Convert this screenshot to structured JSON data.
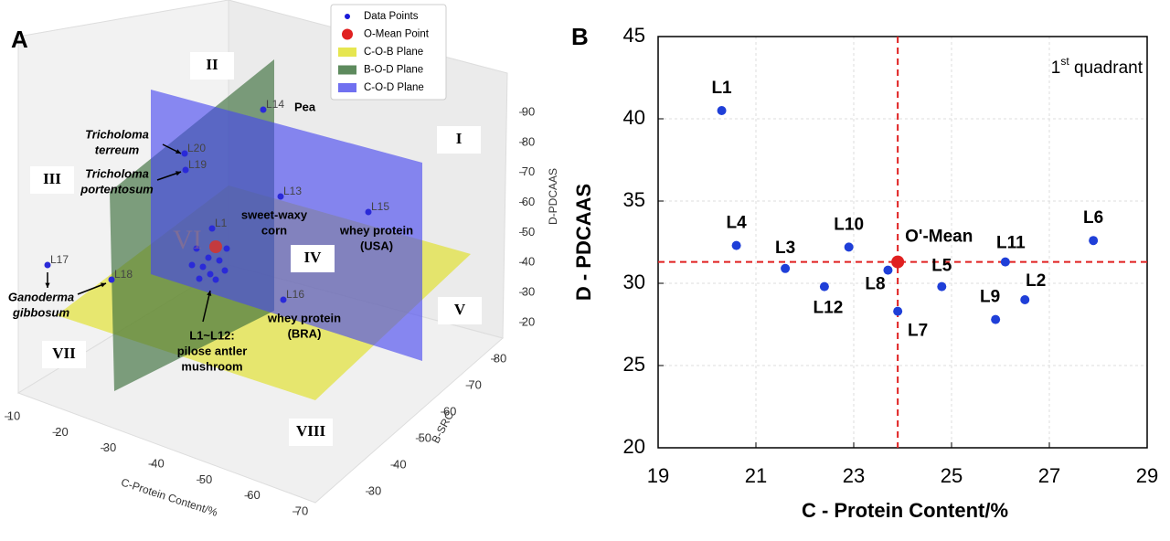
{
  "panel_a": {
    "label": "A",
    "legend": [
      "Data Points",
      "O-Mean Point",
      "C-O-B Plane",
      "B-O-D Plane",
      "C-O-D Plane"
    ],
    "x_axis": {
      "label": "C-Protein Content/%",
      "ticks": [
        10,
        20,
        30,
        40,
        50,
        60,
        70
      ]
    },
    "y_axis": {
      "label": "B-SRC",
      "ticks": [
        30,
        40,
        50,
        60,
        70,
        80
      ]
    },
    "z_axis": {
      "label": "D-PDCAAS",
      "ticks": [
        20,
        30,
        40,
        50,
        60,
        70,
        80,
        90
      ]
    },
    "point_labels": [
      "L14",
      "L20",
      "L19",
      "L13",
      "L15",
      "L17",
      "L18",
      "L16",
      "L1"
    ],
    "annotations": [
      {
        "lines": [
          "Pea"
        ],
        "italic": false
      },
      {
        "lines": [
          "Tricholoma",
          "terreum"
        ],
        "italic": true
      },
      {
        "lines": [
          "Tricholoma",
          "portentosum"
        ],
        "italic": true
      },
      {
        "lines": [
          "Ganoderma",
          "gibbosum"
        ],
        "italic": true
      },
      {
        "lines": [
          "sweet-waxy",
          "corn"
        ],
        "italic": false
      },
      {
        "lines": [
          "whey protein",
          "(USA)"
        ],
        "italic": false
      },
      {
        "lines": [
          "whey protein",
          "(BRA)"
        ],
        "italic": false
      },
      {
        "lines": [
          "L1~L12:",
          "pilose antler",
          "mushroom"
        ],
        "italic": false
      }
    ],
    "regions": [
      "I",
      "II",
      "III",
      "IV",
      "V",
      "VI",
      "VII",
      "VIII"
    ]
  },
  "chart_data": {
    "type": "scatter",
    "panel_label": "B",
    "xlabel": "C - Protein Content/%",
    "ylabel": "D - PDCAAS",
    "xlim": [
      19,
      29
    ],
    "ylim": [
      20,
      45
    ],
    "xticks": [
      19,
      21,
      23,
      25,
      27,
      29
    ],
    "yticks": [
      20,
      25,
      30,
      35,
      40,
      45
    ],
    "grid": true,
    "color": "#1f3fd8",
    "mean_color": "#e02020",
    "annotation": {
      "number": "1",
      "suffix": "st",
      "text": " quadrant"
    },
    "points": [
      {
        "label": "L1",
        "x": 20.3,
        "y": 40.5
      },
      {
        "label": "L2",
        "x": 26.5,
        "y": 29.0
      },
      {
        "label": "L3",
        "x": 21.6,
        "y": 30.9
      },
      {
        "label": "L4",
        "x": 20.6,
        "y": 32.3
      },
      {
        "label": "L5",
        "x": 24.8,
        "y": 29.8
      },
      {
        "label": "L6",
        "x": 27.9,
        "y": 32.6
      },
      {
        "label": "L7",
        "x": 23.9,
        "y": 28.3
      },
      {
        "label": "L8",
        "x": 23.7,
        "y": 30.8
      },
      {
        "label": "L9",
        "x": 25.9,
        "y": 27.8
      },
      {
        "label": "L10",
        "x": 22.9,
        "y": 32.2
      },
      {
        "label": "L11",
        "x": 26.1,
        "y": 31.3
      },
      {
        "label": "L12",
        "x": 22.4,
        "y": 29.8
      }
    ],
    "mean": {
      "label": "O'-Mean",
      "x": 23.9,
      "y": 31.3
    }
  }
}
